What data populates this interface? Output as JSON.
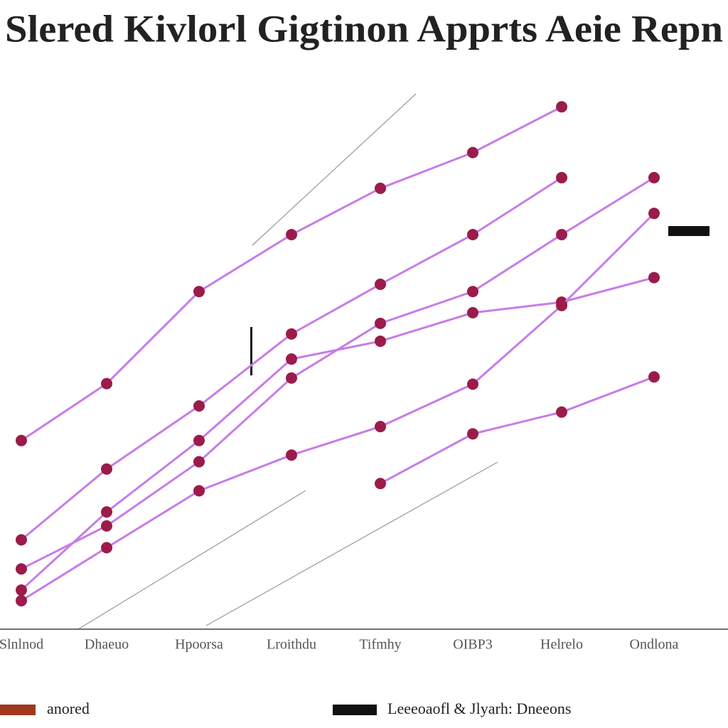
{
  "chart_data": {
    "type": "line",
    "title": "Slered Kivlorl Gigtinon Apprts Aeie Repn",
    "categories": [
      "Slnlnod",
      "Dhaeuo",
      "Hpoorsa",
      "Lroithdu",
      "Tifmhy",
      "OIBP3",
      "Helrelo",
      "Ondlona"
    ],
    "ylim": [
      0,
      100
    ],
    "line_color": "#c77ce8",
    "marker_color": "#9b1b4a",
    "series": [
      {
        "values": [
          33.8,
          44,
          60.5,
          70.7,
          79,
          85.4,
          93.6,
          null
        ]
      },
      {
        "values": [
          16,
          28.7,
          40,
          52.9,
          61.8,
          70.7,
          80.9,
          null
        ]
      },
      {
        "values": [
          10.8,
          18.5,
          30,
          45,
          54.8,
          60.5,
          70.7,
          80.9
        ]
      },
      {
        "values": [
          7,
          21,
          33.8,
          48.4,
          51.6,
          56.7,
          58.6,
          63
        ]
      },
      {
        "values": [
          5.1,
          14.6,
          24.8,
          31.2,
          36.3,
          43.9,
          58,
          74.5
        ]
      },
      {
        "values": [
          null,
          null,
          null,
          null,
          26.1,
          35,
          38.9,
          45.2
        ]
      }
    ],
    "legend": [
      {
        "name": "anored",
        "color": "#a0381e"
      },
      {
        "name": "Leeeoaofl & Jlyarh: Dneeons",
        "color": "#111111"
      }
    ]
  }
}
